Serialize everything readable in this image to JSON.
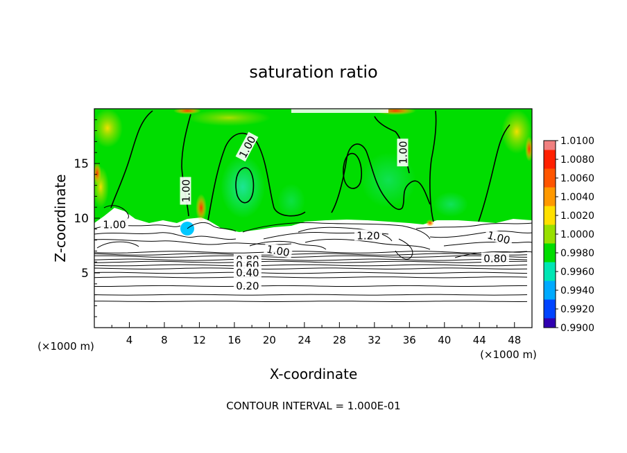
{
  "chart_data": {
    "type": "contour",
    "title": "saturation ratio",
    "xlabel": "X-coordinate",
    "ylabel": "Z-coordinate",
    "x_unit": "(×1000 m)",
    "z_unit": "(×1000 m)",
    "xlim": [
      0,
      50
    ],
    "ylim": [
      0,
      20
    ],
    "x_ticks": [
      4,
      8,
      12,
      16,
      20,
      24,
      28,
      32,
      36,
      40,
      44,
      48
    ],
    "y_ticks": [
      5,
      10,
      15
    ],
    "grid": false,
    "footer": "CONTOUR INTERVAL = 1.000E-01",
    "contour_interval": 0.1,
    "colorbar": {
      "position": "right",
      "levels": [
        "1.0100",
        "1.0080",
        "1.0060",
        "1.0040",
        "1.0020",
        "1.0000",
        "0.9980",
        "0.9960",
        "0.9940",
        "0.9920",
        "0.9900"
      ],
      "colors": [
        "#f08080",
        "#ff2000",
        "#ff5500",
        "#ff9900",
        "#ffe000",
        "#98e000",
        "#00dd00",
        "#00e6b4",
        "#00aaff",
        "#0044ff",
        "#3000b0",
        "#6a00a0"
      ]
    },
    "contour_labels": [
      {
        "text": "1.00",
        "x": 17.5,
        "z": 16.5,
        "angle": 62
      },
      {
        "text": "1.00",
        "x": 35.3,
        "z": 16.0,
        "angle": 90
      },
      {
        "text": "1.00",
        "x": 10.5,
        "z": 12.5,
        "angle": 90
      },
      {
        "text": "1.00",
        "x": 2.3,
        "z": 9.4,
        "angle": 0
      },
      {
        "text": "1.20",
        "x": 31.3,
        "z": 8.4,
        "angle": 0
      },
      {
        "text": "1.00",
        "x": 21.0,
        "z": 7.0,
        "angle": -10
      },
      {
        "text": "1.00",
        "x": 46.2,
        "z": 8.2,
        "angle": -15
      },
      {
        "text": "0.80",
        "x": 45.8,
        "z": 6.3,
        "angle": 0
      },
      {
        "text": "0.80",
        "x": 17.5,
        "z": 6.2,
        "angle": 0
      },
      {
        "text": "0.60",
        "x": 17.5,
        "z": 5.7,
        "angle": 0
      },
      {
        "text": "0.40",
        "x": 17.5,
        "z": 5.0,
        "angle": 0
      },
      {
        "text": "0.20",
        "x": 17.5,
        "z": 3.8,
        "angle": 0
      }
    ],
    "lower_contour_heights": [
      2.4,
      3.0,
      3.8,
      4.6,
      5.0,
      5.4,
      5.7,
      6.0,
      6.2,
      6.5,
      6.7,
      6.9
    ]
  }
}
